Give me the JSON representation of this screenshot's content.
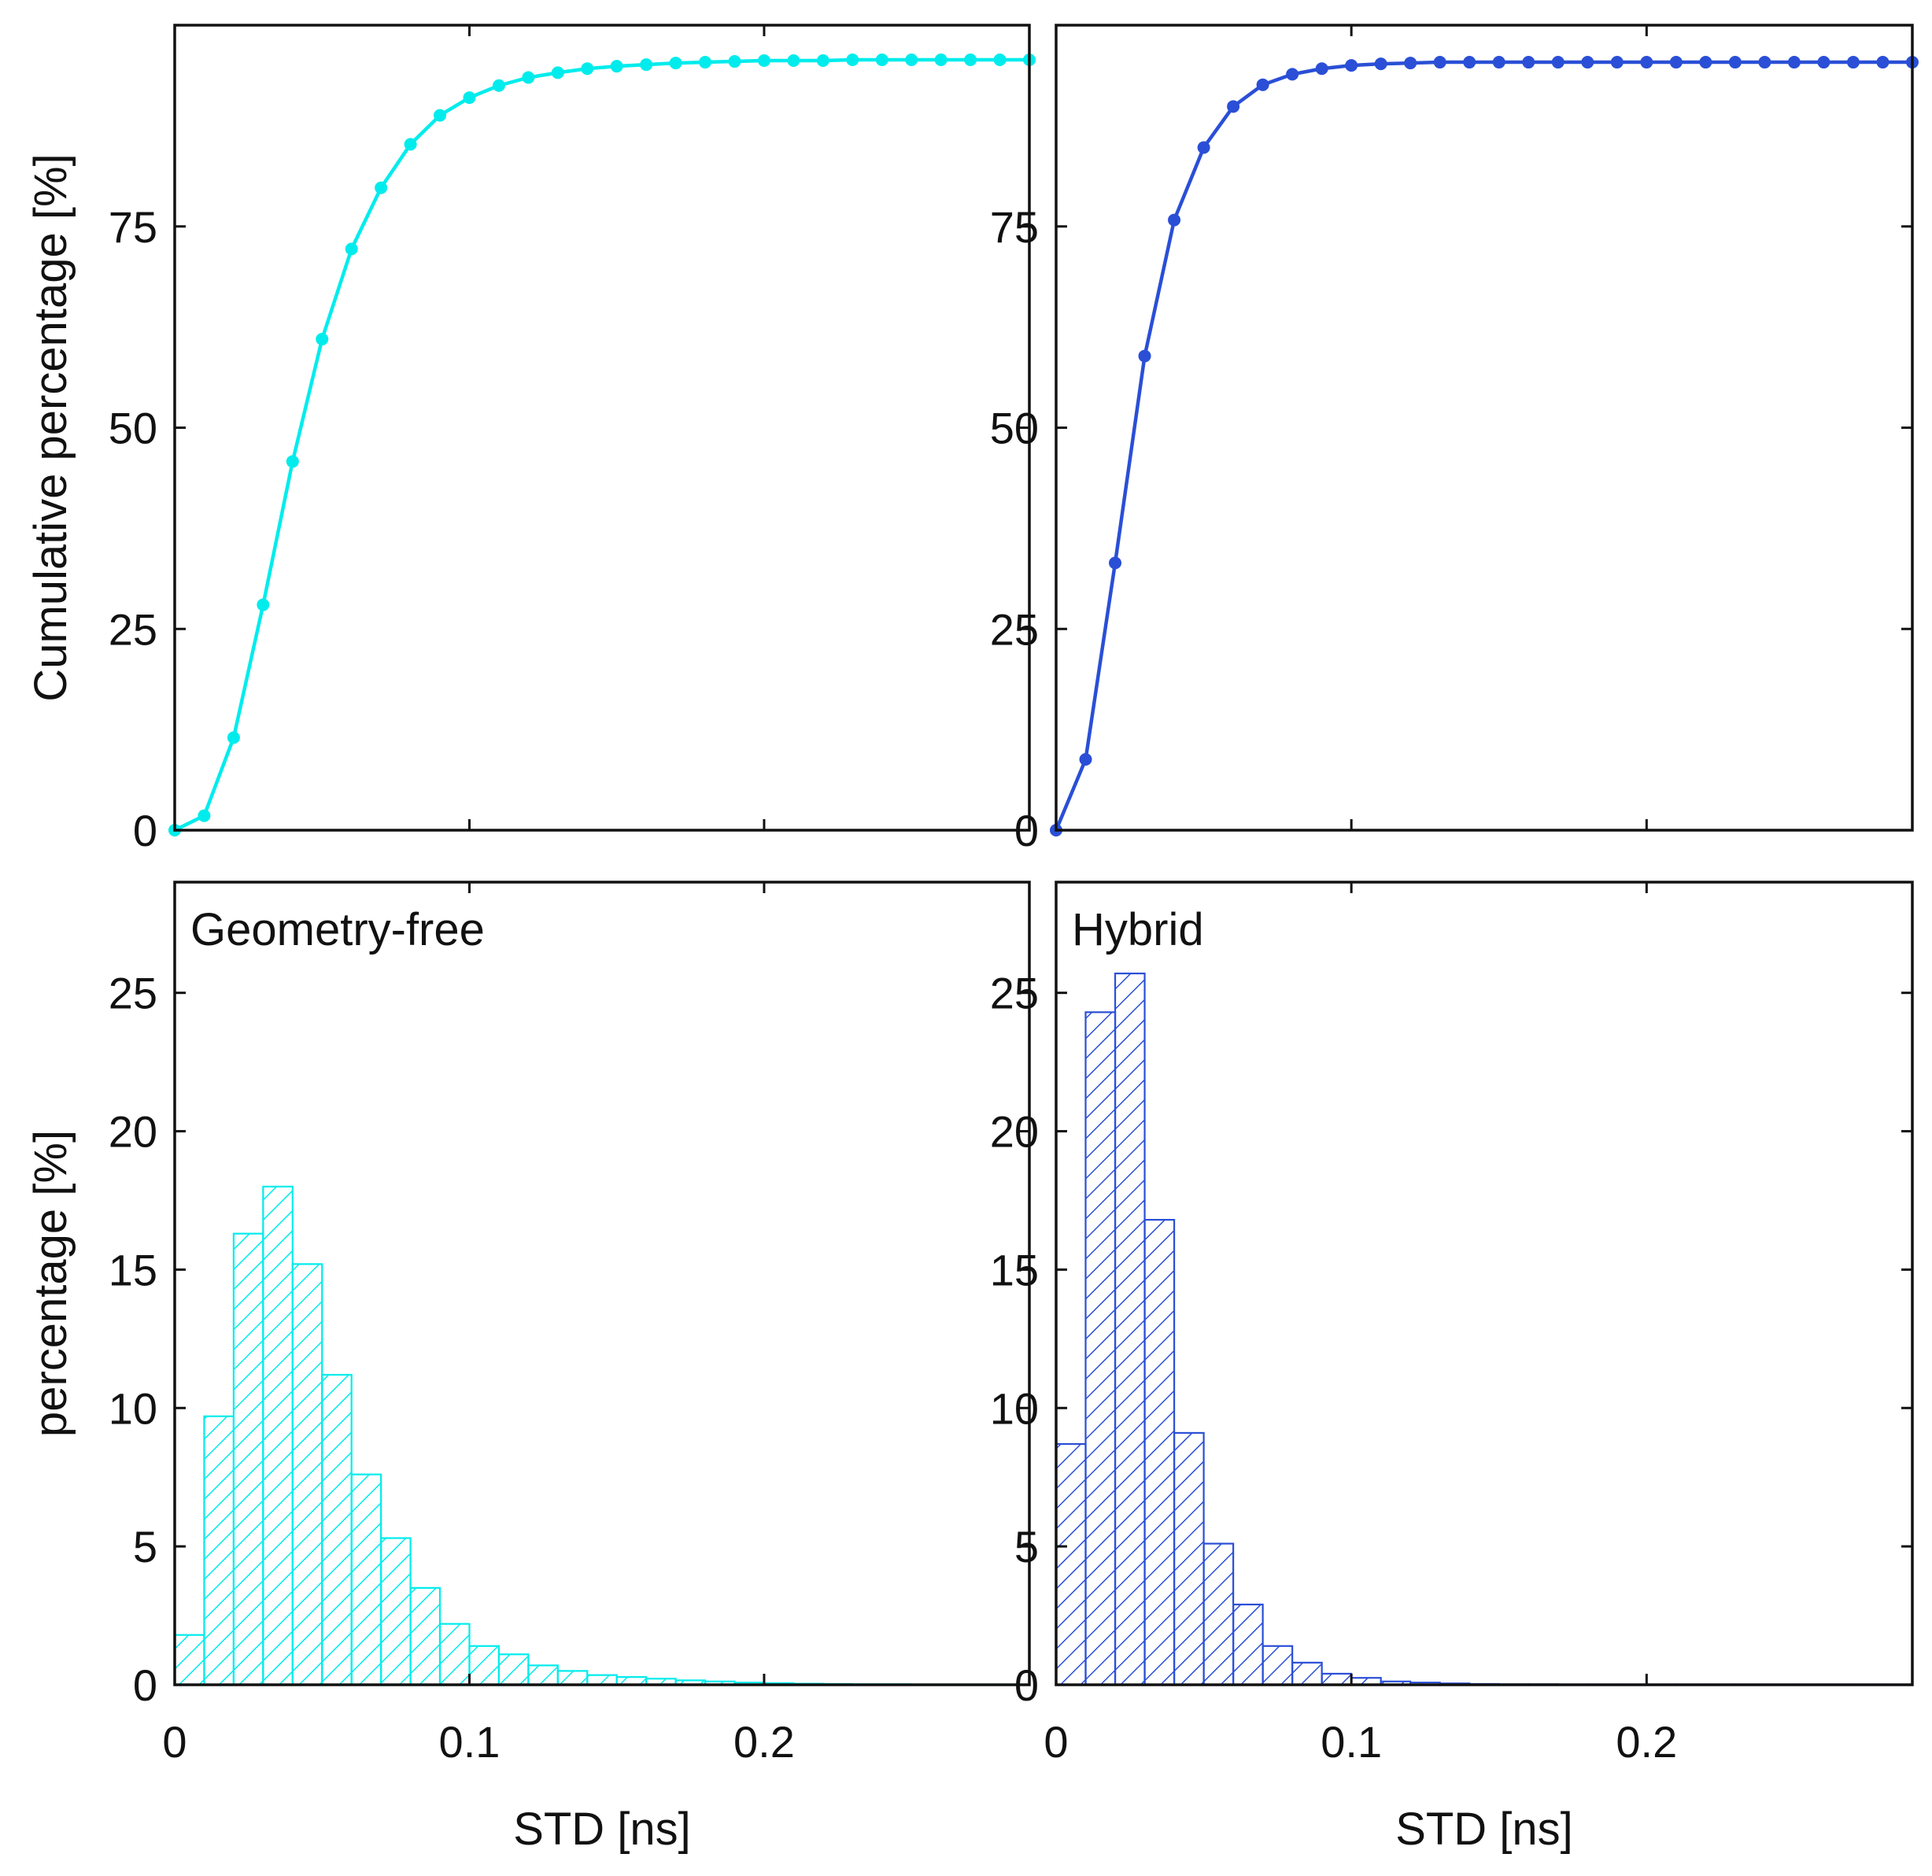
{
  "chart_data": [
    {
      "id": "cdf-geometry-free",
      "type": "line",
      "title": "",
      "xlabel": "",
      "ylabel": "Cumulative percentage [%]",
      "color": "#00ecec",
      "xlim": [
        0,
        0.29
      ],
      "ylim": [
        0,
        100
      ],
      "xticks": [
        0,
        0.1,
        0.2
      ],
      "yticks": [
        0,
        25,
        50,
        75
      ],
      "ytick_labels": [
        "0",
        "25",
        "50",
        "75"
      ],
      "series": [
        {
          "name": "Geometry-free",
          "x": [
            0,
            0.01,
            0.02,
            0.03,
            0.04,
            0.05,
            0.06,
            0.07,
            0.08,
            0.09,
            0.1,
            0.11,
            0.12,
            0.13,
            0.14,
            0.15,
            0.16,
            0.17,
            0.18,
            0.19,
            0.2,
            0.21,
            0.22,
            0.23,
            0.24,
            0.25,
            0.26,
            0.27,
            0.28,
            0.29
          ],
          "y": [
            0,
            1.8,
            11.5,
            28.0,
            45.8,
            61.0,
            72.2,
            79.8,
            85.2,
            88.8,
            91.0,
            92.5,
            93.5,
            94.1,
            94.6,
            94.9,
            95.1,
            95.3,
            95.4,
            95.5,
            95.6,
            95.6,
            95.6,
            95.7,
            95.7,
            95.7,
            95.7,
            95.7,
            95.7,
            95.7
          ]
        }
      ]
    },
    {
      "id": "cdf-hybrid",
      "type": "line",
      "title": "",
      "xlabel": "",
      "ylabel": "",
      "color": "#2a4fd6",
      "xlim": [
        0,
        0.29
      ],
      "ylim": [
        0,
        100
      ],
      "xticks": [
        0,
        0.1,
        0.2
      ],
      "yticks": [
        0,
        25,
        50,
        75
      ],
      "ytick_labels": [
        "0",
        "25",
        "50",
        "75"
      ],
      "series": [
        {
          "name": "Hybrid",
          "x": [
            0,
            0.01,
            0.02,
            0.03,
            0.04,
            0.05,
            0.06,
            0.07,
            0.08,
            0.09,
            0.1,
            0.11,
            0.12,
            0.13,
            0.14,
            0.15,
            0.16,
            0.17,
            0.18,
            0.19,
            0.2,
            0.21,
            0.22,
            0.23,
            0.24,
            0.25,
            0.26,
            0.27,
            0.28,
            0.29
          ],
          "y": [
            0,
            8.8,
            33.2,
            58.9,
            75.8,
            84.8,
            89.9,
            92.6,
            93.9,
            94.6,
            95.0,
            95.2,
            95.3,
            95.4,
            95.4,
            95.4,
            95.4,
            95.4,
            95.4,
            95.4,
            95.4,
            95.4,
            95.4,
            95.4,
            95.4,
            95.4,
            95.4,
            95.4,
            95.4,
            95.4
          ]
        }
      ]
    },
    {
      "id": "hist-geometry-free",
      "type": "bar",
      "title": "",
      "annotation": "Geometry-free",
      "xlabel": "STD [ns]",
      "ylabel": "percentage [%]",
      "color": "#00ecec",
      "xlim": [
        0,
        0.29
      ],
      "ylim": [
        0,
        29
      ],
      "xticks": [
        0,
        0.1,
        0.2
      ],
      "xtick_labels": [
        "0",
        "0.1",
        "0.2"
      ],
      "yticks": [
        0,
        5,
        10,
        15,
        20,
        25
      ],
      "ytick_labels": [
        "0",
        "5",
        "10",
        "15",
        "20",
        "25"
      ],
      "bin_start": 0.005,
      "bin_width": 0.01,
      "values": [
        1.8,
        9.7,
        16.3,
        18.0,
        15.2,
        11.2,
        7.6,
        5.3,
        3.5,
        2.2,
        1.4,
        1.1,
        0.7,
        0.5,
        0.35,
        0.28,
        0.22,
        0.16,
        0.12,
        0.08,
        0.06,
        0.04,
        0.03,
        0.02,
        0.02,
        0.01,
        0.01,
        0.01,
        0.01
      ]
    },
    {
      "id": "hist-hybrid",
      "type": "bar",
      "title": "",
      "annotation": "Hybrid",
      "xlabel": "STD [ns]",
      "ylabel": "",
      "color": "#2a4fd6",
      "xlim": [
        0,
        0.29
      ],
      "ylim": [
        0,
        29
      ],
      "xticks": [
        0,
        0.1,
        0.2
      ],
      "xtick_labels": [
        "0",
        "0.1",
        "0.2"
      ],
      "yticks": [
        0,
        5,
        10,
        15,
        20,
        25
      ],
      "ytick_labels": [
        "0",
        "5",
        "10",
        "15",
        "20",
        "25"
      ],
      "bin_start": 0.005,
      "bin_width": 0.01,
      "values": [
        8.7,
        24.3,
        25.7,
        16.8,
        9.1,
        5.1,
        2.9,
        1.4,
        0.8,
        0.4,
        0.25,
        0.12,
        0.08,
        0.05,
        0.03,
        0.02,
        0.02,
        0.01,
        0.01,
        0.01,
        0.01,
        0.01,
        0.01,
        0.01,
        0.01,
        0.01,
        0.01,
        0.01,
        0.01
      ]
    }
  ]
}
